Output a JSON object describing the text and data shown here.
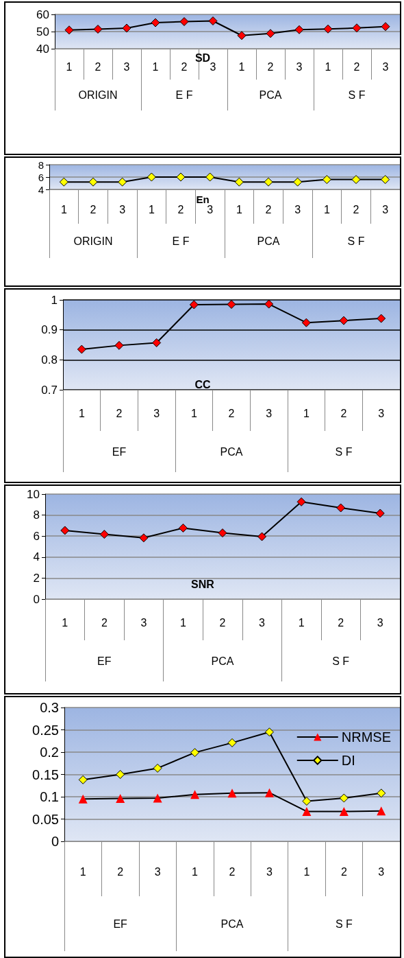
{
  "chart_data": [
    {
      "type": "line",
      "title": "SD",
      "categories": [
        "1",
        "2",
        "3",
        "1",
        "2",
        "3",
        "1",
        "2",
        "3",
        "1",
        "2",
        "3"
      ],
      "annotations": [
        "ORIGIN",
        "E F",
        "PCA",
        "S F"
      ],
      "series": [
        {
          "color": "#ff0000",
          "values": [
            50.9,
            51.4,
            52.0,
            55.2,
            55.8,
            56.2,
            47.7,
            48.9,
            51.1,
            51.5,
            52.1,
            52.9
          ]
        }
      ],
      "ylim": [
        40,
        60
      ],
      "yticks": [
        40,
        50,
        60
      ],
      "grid": "y",
      "marker": "diamond",
      "line_style": "solid",
      "legend": false
    },
    {
      "type": "line",
      "title": "En",
      "categories": [
        "1",
        "2",
        "3",
        "1",
        "2",
        "3",
        "1",
        "2",
        "3",
        "1",
        "2",
        "3"
      ],
      "annotations": [
        "ORIGIN",
        "E F",
        "PCA",
        "S F"
      ],
      "series": [
        {
          "color": "#ffff00",
          "values": [
            5.2,
            5.2,
            5.2,
            6.0,
            6.0,
            6.0,
            5.2,
            5.2,
            5.2,
            5.6,
            5.6,
            5.6
          ]
        }
      ],
      "ylim": [
        4,
        8
      ],
      "yticks": [
        4,
        6,
        8
      ],
      "grid": "y",
      "marker": "diamond",
      "line_style": "solid",
      "legend": false
    },
    {
      "type": "line",
      "title": "CC",
      "categories": [
        "1",
        "2",
        "3",
        "1",
        "2",
        "3",
        "1",
        "2",
        "3"
      ],
      "annotations": [
        "EF",
        "PCA",
        "S F"
      ],
      "series": [
        {
          "color": "#ff0000",
          "values": [
            0.835,
            0.848,
            0.857,
            0.984,
            0.985,
            0.986,
            0.924,
            0.931,
            0.938
          ]
        }
      ],
      "ylim": [
        0.7,
        1
      ],
      "yticks": [
        0.7,
        0.8,
        0.9,
        1
      ],
      "grid": "y",
      "marker": "diamond",
      "line_style": "solid",
      "legend": false
    },
    {
      "type": "line",
      "title": "SNR",
      "categories": [
        "1",
        "2",
        "3",
        "1",
        "2",
        "3",
        "1",
        "2",
        "3"
      ],
      "annotations": [
        "EF",
        "PCA",
        "S F"
      ],
      "series": [
        {
          "color": "#ff0000",
          "values": [
            6.54,
            6.17,
            5.83,
            6.77,
            6.3,
            5.95,
            9.26,
            8.69,
            8.17
          ]
        }
      ],
      "ylim": [
        0,
        10
      ],
      "yticks": [
        0,
        2,
        4,
        6,
        8,
        10
      ],
      "grid": "y",
      "marker": "diamond",
      "line_style": "solid",
      "legend": false
    },
    {
      "type": "line",
      "categories": [
        "1",
        "2",
        "3",
        "1",
        "2",
        "3",
        "1",
        "2",
        "3"
      ],
      "annotations": [
        "EF",
        "PCA",
        "S F"
      ],
      "series": [
        {
          "name": "NRMSE",
          "color": "#ff0000",
          "marker": "triangle",
          "values": [
            0.095,
            0.096,
            0.097,
            0.105,
            0.108,
            0.109,
            0.067,
            0.067,
            0.068
          ]
        },
        {
          "name": "DI",
          "color": "#ffff00",
          "marker": "diamond",
          "values": [
            0.138,
            0.15,
            0.164,
            0.199,
            0.221,
            0.245,
            0.09,
            0.097,
            0.108
          ]
        }
      ],
      "ylim": [
        0,
        0.3
      ],
      "yticks": [
        0,
        0.05,
        0.1,
        0.15,
        0.2,
        0.25,
        0.3
      ],
      "grid": "y",
      "line_style": "solid",
      "legend": "top right"
    }
  ]
}
